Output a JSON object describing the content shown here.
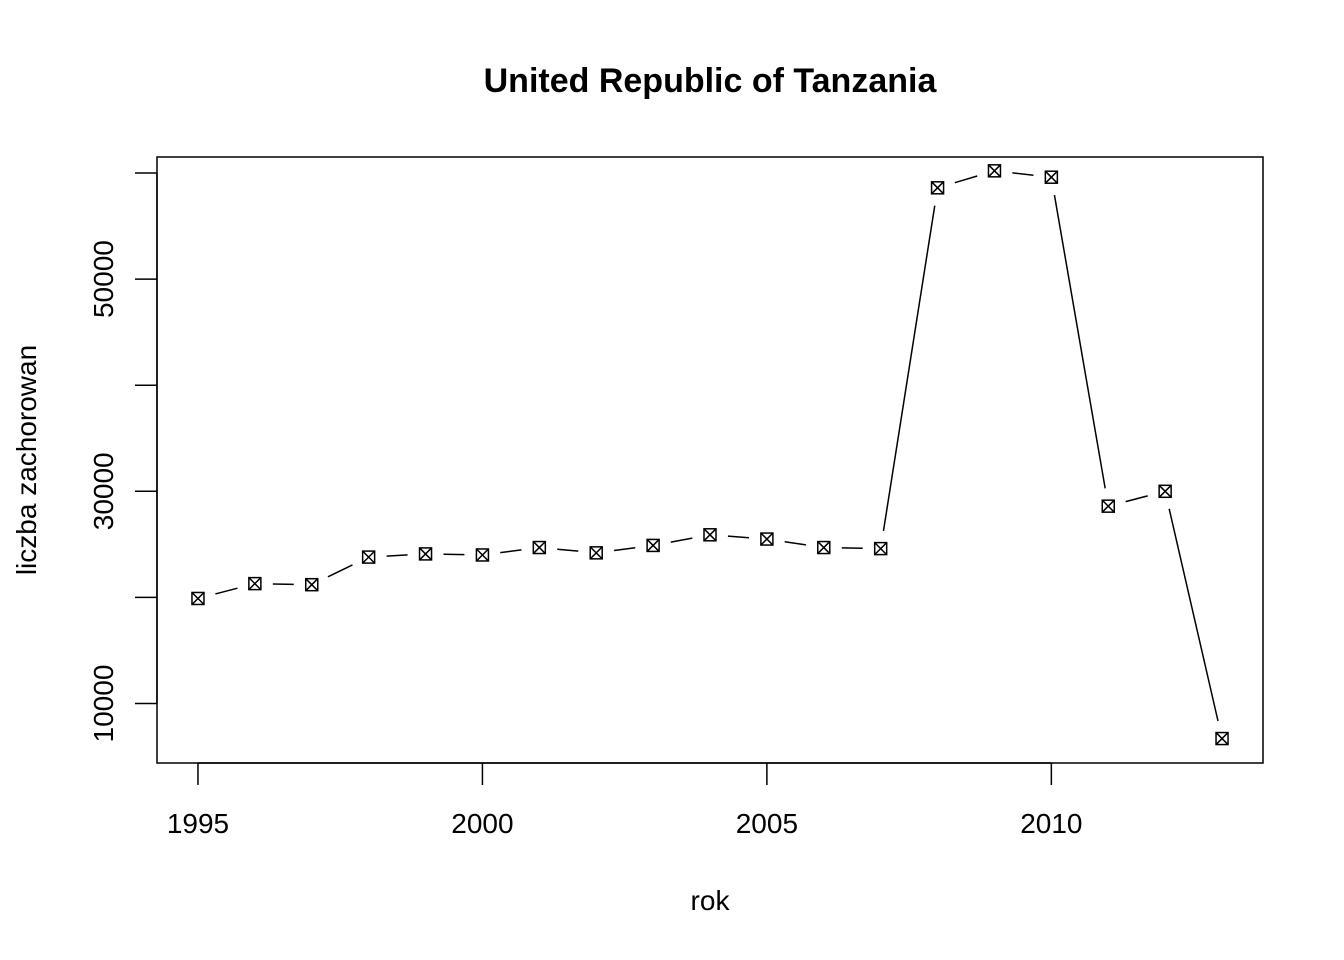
{
  "chart_data": {
    "type": "line",
    "title": "United Republic of Tanzania",
    "xlabel": "rok",
    "ylabel": "liczba zachorowan",
    "x": [
      1995,
      1996,
      1997,
      1998,
      1999,
      2000,
      2001,
      2002,
      2003,
      2004,
      2005,
      2006,
      2007,
      2008,
      2009,
      2010,
      2011,
      2012,
      2013
    ],
    "series": [
      {
        "values": [
          19900,
          21300,
          21200,
          23800,
          24100,
          24000,
          24700,
          24200,
          24900,
          25900,
          25500,
          24700,
          24600,
          58600,
          60200,
          59600,
          28600,
          30000,
          6700
        ]
      }
    ],
    "xlim": [
      1994.28,
      2013.72
    ],
    "ylim": [
      4396,
      61504
    ],
    "x_ticks": [
      1995,
      2000,
      2005,
      2010
    ],
    "y_ticks": [
      10000,
      20000,
      30000,
      40000,
      50000,
      60000
    ],
    "y_tick_labels": [
      "10000",
      "",
      "30000",
      "",
      "50000",
      ""
    ],
    "grid": false,
    "legend": "none",
    "line_style": "type b (lines broken around points)",
    "marker": "square-with-x",
    "color": "#000000"
  }
}
